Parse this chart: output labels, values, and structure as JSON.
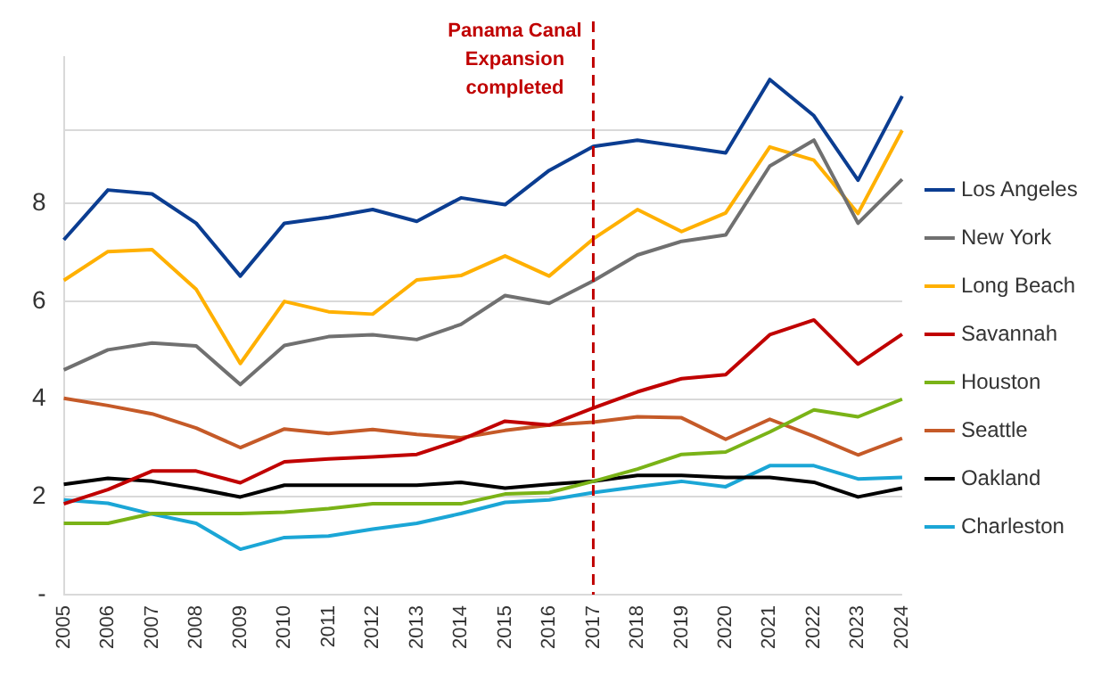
{
  "chart_data": {
    "type": "line",
    "categories": [
      "2005",
      "2006",
      "2007",
      "2008",
      "2009",
      "2010",
      "2011",
      "2012",
      "2013",
      "2014",
      "2015",
      "2016",
      "2017",
      "2018",
      "2019",
      "2020",
      "2021",
      "2022",
      "2023",
      "2024"
    ],
    "series": [
      {
        "name": "Los Angeles",
        "color": "#0b3d91",
        "values": [
          7.26,
          8.28,
          8.2,
          7.6,
          6.52,
          7.6,
          7.72,
          7.88,
          7.64,
          8.12,
          7.98,
          8.68,
          9.17,
          9.3,
          9.17,
          9.04,
          10.54,
          9.8,
          8.48,
          10.2
        ]
      },
      {
        "name": "New York",
        "color": "#707070",
        "values": [
          4.6,
          5.01,
          5.15,
          5.09,
          4.3,
          5.1,
          5.28,
          5.32,
          5.22,
          5.53,
          6.12,
          5.96,
          6.42,
          6.95,
          7.23,
          7.36,
          8.77,
          9.3,
          7.6,
          8.5
        ]
      },
      {
        "name": "Long Beach",
        "color": "#ffb000",
        "values": [
          6.43,
          7.02,
          7.06,
          6.25,
          4.73,
          6.0,
          5.79,
          5.74,
          6.44,
          6.53,
          6.93,
          6.52,
          7.28,
          7.88,
          7.43,
          7.81,
          9.16,
          8.89,
          7.8,
          9.5
        ]
      },
      {
        "name": "Savannah",
        "color": "#c00000",
        "values": [
          1.86,
          2.15,
          2.53,
          2.53,
          2.29,
          2.72,
          2.78,
          2.82,
          2.87,
          3.17,
          3.55,
          3.47,
          3.82,
          4.15,
          4.42,
          4.5,
          5.32,
          5.62,
          4.72,
          5.33
        ]
      },
      {
        "name": "Houston",
        "color": "#7ab317",
        "values": [
          1.46,
          1.46,
          1.66,
          1.66,
          1.66,
          1.69,
          1.76,
          1.86,
          1.86,
          1.86,
          2.06,
          2.09,
          2.32,
          2.57,
          2.87,
          2.92,
          3.33,
          3.78,
          3.64,
          4.0
        ]
      },
      {
        "name": "Seattle",
        "color": "#c55a28",
        "values": [
          4.02,
          3.87,
          3.7,
          3.41,
          3.01,
          3.39,
          3.3,
          3.38,
          3.28,
          3.21,
          3.36,
          3.47,
          3.53,
          3.64,
          3.62,
          3.18,
          3.59,
          3.24,
          2.86,
          3.2
        ]
      },
      {
        "name": "Oakland",
        "color": "#000000",
        "values": [
          2.26,
          2.38,
          2.32,
          2.17,
          2.0,
          2.24,
          2.24,
          2.24,
          2.24,
          2.3,
          2.18,
          2.26,
          2.32,
          2.44,
          2.44,
          2.4,
          2.4,
          2.3,
          2.0,
          2.18
        ]
      },
      {
        "name": "Charleston",
        "color": "#1ba6d6",
        "values": [
          1.94,
          1.87,
          1.65,
          1.46,
          0.93,
          1.17,
          1.2,
          1.34,
          1.46,
          1.66,
          1.89,
          1.94,
          2.09,
          2.21,
          2.32,
          2.21,
          2.64,
          2.64,
          2.37,
          2.4
        ]
      }
    ],
    "ylim": [
      0,
      11
    ],
    "yticks": [
      {
        "value": 0,
        "label": "-"
      },
      2,
      4,
      6,
      8,
      {
        "value": 9.5,
        "label": null
      }
    ],
    "grid": "y",
    "legend": "right",
    "marker": "none",
    "line_style": "solid",
    "ref_lines": [
      {
        "axis": "x",
        "value": "2017",
        "label": "Panama Canal Expansion completed",
        "color": "#c00000",
        "line_style": "dashed"
      }
    ]
  }
}
